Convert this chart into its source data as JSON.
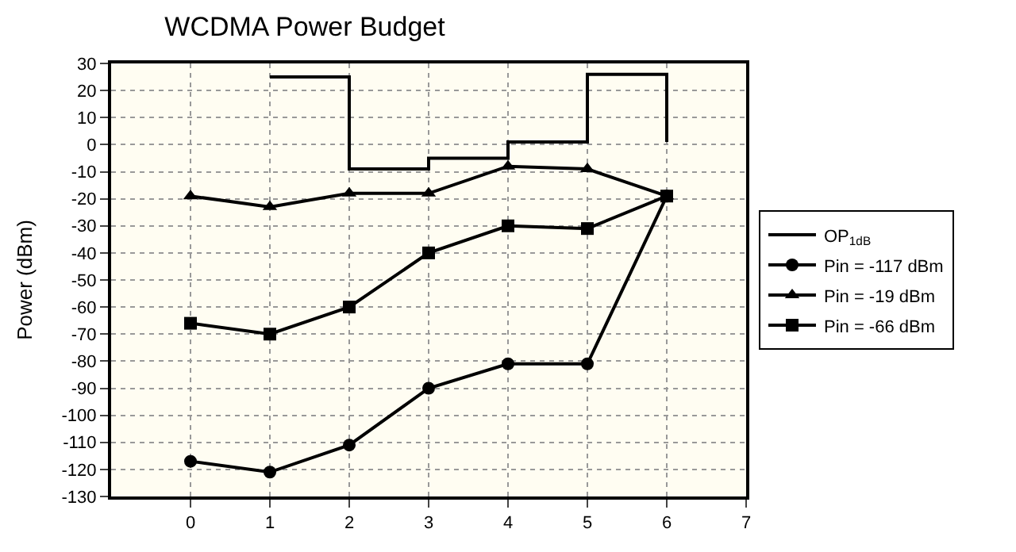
{
  "chart_data": {
    "type": "line",
    "title": "WCDMA Power Budget",
    "ylabel": "Power (dBm)",
    "x": [
      0,
      1,
      2,
      3,
      4,
      5,
      6
    ],
    "xlim": [
      -1,
      7
    ],
    "xticks": [
      0,
      1,
      2,
      3,
      4,
      5,
      6,
      7
    ],
    "ylim": [
      -130,
      30
    ],
    "yticks": [
      -130,
      -120,
      -110,
      -100,
      -90,
      -80,
      -70,
      -60,
      -50,
      -40,
      -30,
      -20,
      -10,
      0,
      10,
      20,
      30
    ],
    "grid": true,
    "legend": "right",
    "line_style": "solid",
    "series": [
      {
        "name": "OP$_{1dB}$",
        "type": "step",
        "marker": "none",
        "color": "#000000",
        "x": [
          1,
          2,
          3,
          4,
          5,
          6,
          6
        ],
        "values": [
          25,
          -9,
          -5,
          1,
          26,
          26,
          1
        ]
      },
      {
        "name": "Pin = -117 dBm",
        "marker": "circle",
        "color": "#000000",
        "values": [
          -117,
          -121,
          -111,
          -90,
          -81,
          -81,
          -19
        ]
      },
      {
        "name": "Pin = -19 dBm",
        "marker": "triangle",
        "color": "#000000",
        "values": [
          -19,
          -23,
          -18,
          -18,
          -8,
          -9,
          -19
        ]
      },
      {
        "name": "Pin = -66 dBm",
        "marker": "square",
        "color": "#000000",
        "values": [
          -66,
          -70,
          -60,
          -40,
          -30,
          -31,
          -19
        ]
      }
    ]
  }
}
